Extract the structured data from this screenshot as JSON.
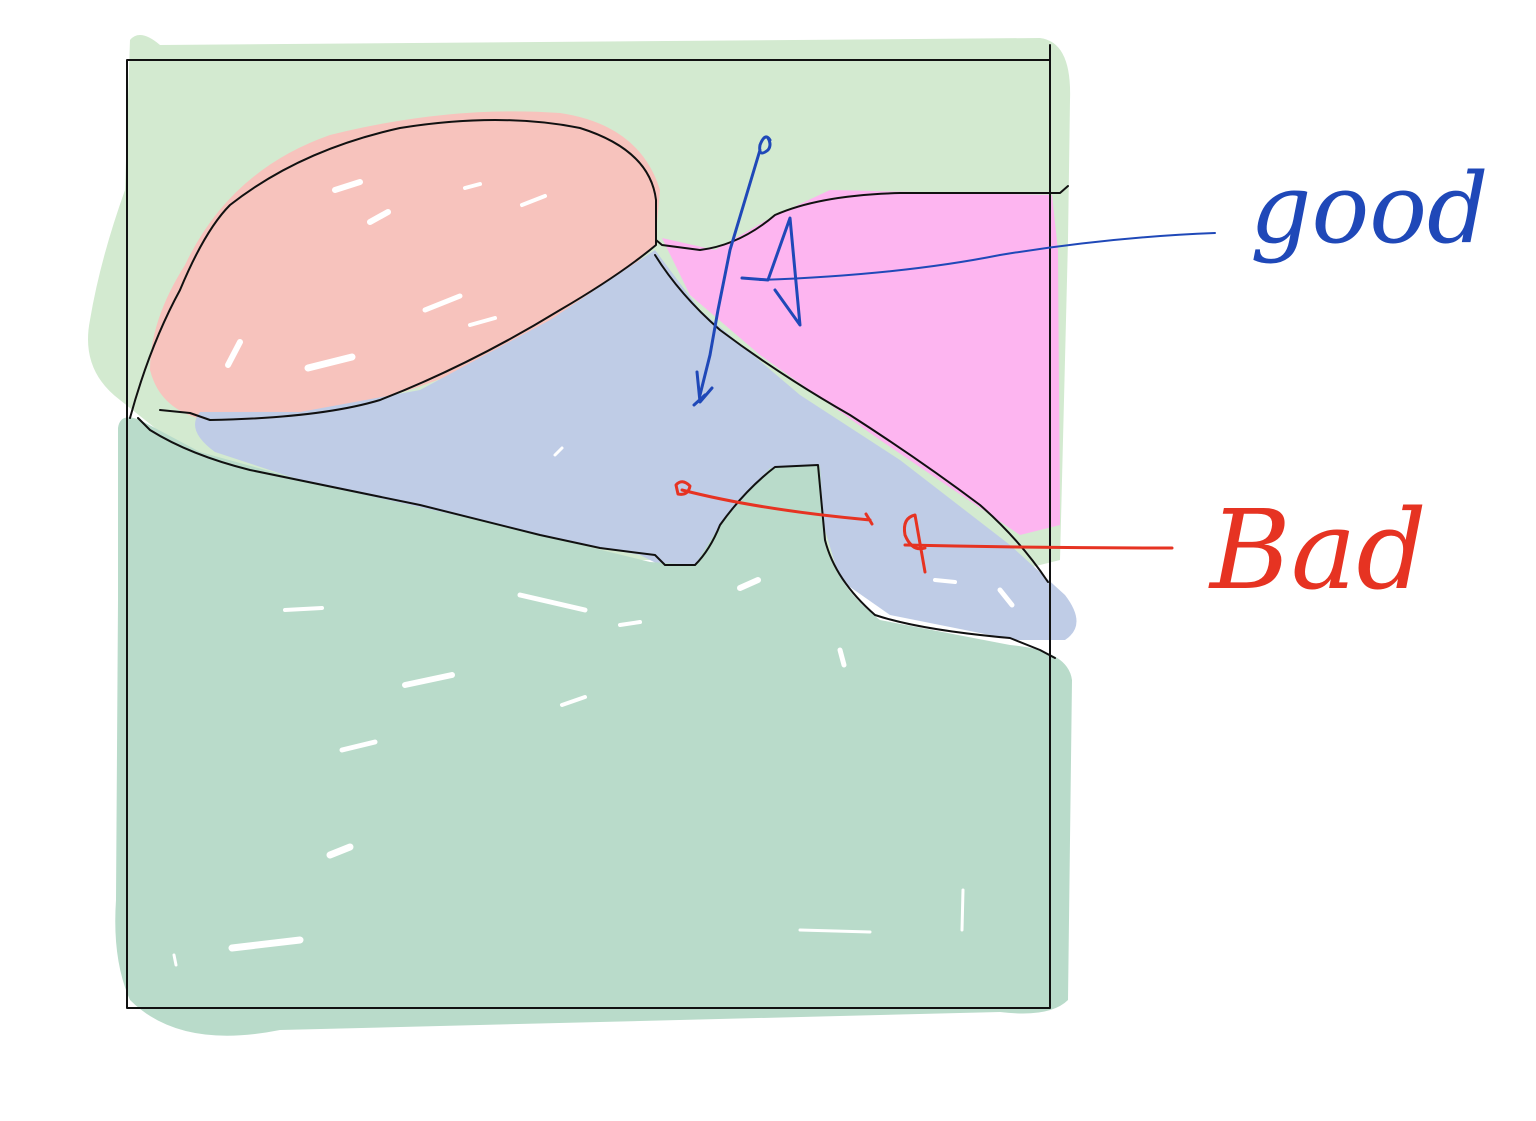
{
  "annotations": {
    "good": {
      "label": "good",
      "color": "#1f48b8"
    },
    "bad": {
      "label": "Bad",
      "color": "#e63322"
    }
  },
  "regions": [
    {
      "name": "sky",
      "color": "#d3ead0"
    },
    {
      "name": "red-blob",
      "color": "#f7c3bd"
    },
    {
      "name": "magenta-region",
      "color": "#fdb5f0"
    },
    {
      "name": "blue-region",
      "color": "#bfcce6"
    },
    {
      "name": "ground",
      "color": "#b9dbca"
    }
  ],
  "outline_color": "#111111"
}
